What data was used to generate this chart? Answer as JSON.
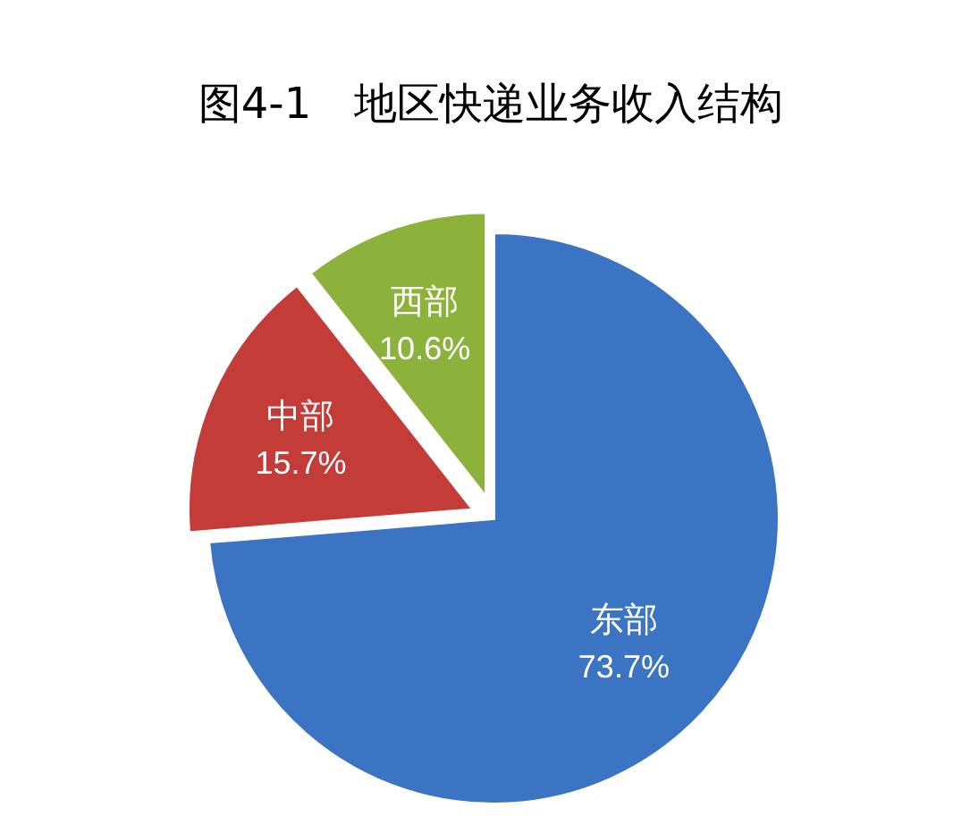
{
  "chart_data": {
    "type": "pie",
    "title": "图4-1　地区快递业务收入结构",
    "categories": [
      "东部",
      "中部",
      "西部"
    ],
    "values": [
      73.7,
      15.7,
      10.6
    ],
    "colors": [
      "#3b74c2",
      "#c43c38",
      "#8cb23c"
    ],
    "value_labels": [
      "73.7%",
      "15.7%",
      "10.6%"
    ],
    "legend": false
  }
}
